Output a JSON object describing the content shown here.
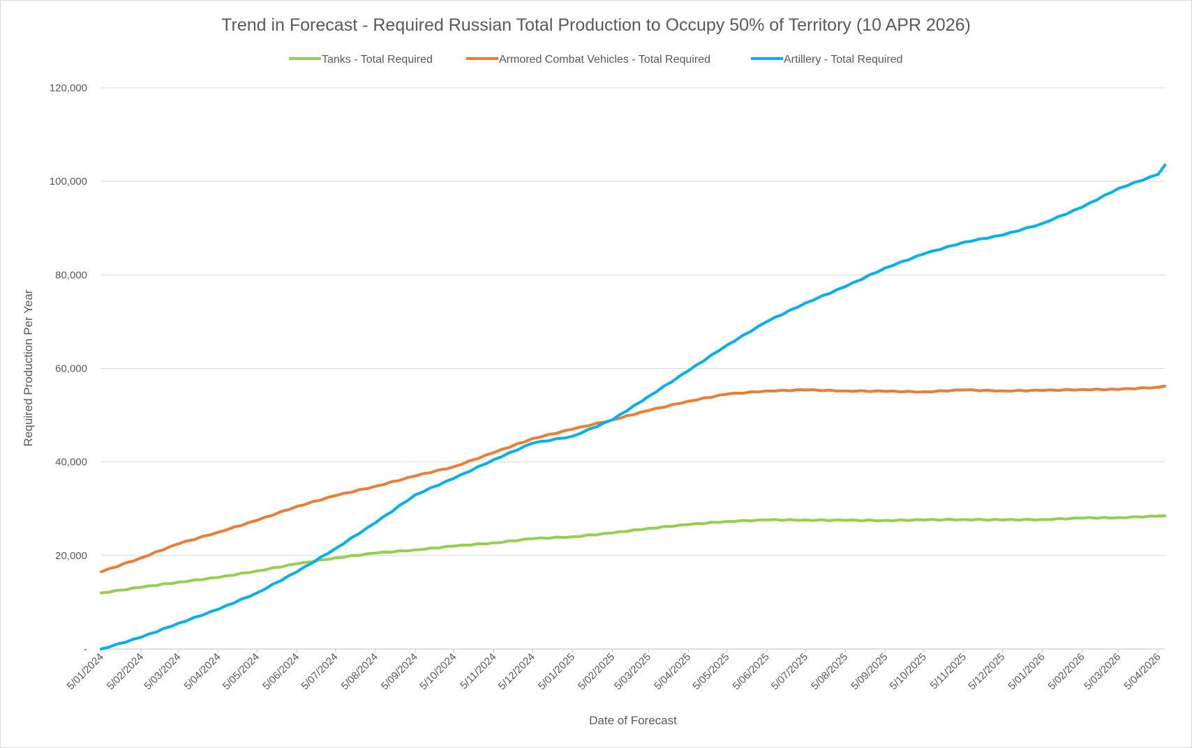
{
  "chart_data": {
    "type": "line",
    "title": "Trend in Forecast - Required Russian Total Production to Occupy 50% of Territory (10 APR 2026)",
    "xlabel": "Date of Forecast",
    "ylabel": "Required Production Per Year",
    "ylim": [
      0,
      120000
    ],
    "yticks": [
      0,
      20000,
      40000,
      60000,
      80000,
      100000,
      120000
    ],
    "ytick_labels": [
      "-",
      "20,000",
      "40,000",
      "60,000",
      "80,000",
      "100,000",
      "120,000"
    ],
    "x_start": "2024-01-05",
    "x_end": "2026-04-10",
    "xticks": [
      "2024-01-05",
      "2024-02-05",
      "2024-03-05",
      "2024-04-05",
      "2024-05-05",
      "2024-06-05",
      "2024-07-05",
      "2024-08-05",
      "2024-09-05",
      "2024-10-05",
      "2024-11-05",
      "2024-12-05",
      "2025-01-05",
      "2025-02-05",
      "2025-03-05",
      "2025-04-05",
      "2025-05-05",
      "2025-06-05",
      "2025-07-05",
      "2025-08-05",
      "2025-09-05",
      "2025-10-05",
      "2025-11-05",
      "2025-12-05",
      "2026-01-05",
      "2026-02-05",
      "2026-03-05",
      "2026-04-05"
    ],
    "xtick_labels": [
      "5/01/2024",
      "5/02/2024",
      "5/03/2024",
      "5/04/2024",
      "5/05/2024",
      "5/06/2024",
      "5/07/2024",
      "5/08/2024",
      "5/09/2024",
      "5/10/2024",
      "5/11/2024",
      "5/12/2024",
      "5/01/2025",
      "5/02/2025",
      "5/03/2025",
      "5/04/2025",
      "5/05/2025",
      "5/06/2025",
      "5/07/2025",
      "5/08/2025",
      "5/09/2025",
      "5/10/2025",
      "5/11/2025",
      "5/12/2025",
      "5/01/2026",
      "5/02/2026",
      "5/03/2026",
      "5/04/2026"
    ],
    "grid": true,
    "legend_position": "top",
    "series": [
      {
        "name": "Tanks - Total Required",
        "color": "#92d050",
        "points": [
          [
            "2024-01-05",
            12000
          ],
          [
            "2024-02-05",
            13200
          ],
          [
            "2024-03-05",
            14300
          ],
          [
            "2024-04-05",
            15300
          ],
          [
            "2024-05-05",
            16700
          ],
          [
            "2024-06-05",
            18200
          ],
          [
            "2024-07-05",
            19500
          ],
          [
            "2024-08-05",
            20500
          ],
          [
            "2024-09-05",
            21200
          ],
          [
            "2024-10-05",
            22000
          ],
          [
            "2024-11-05",
            22700
          ],
          [
            "2024-12-05",
            23600
          ],
          [
            "2025-01-05",
            24000
          ],
          [
            "2025-02-05",
            24800
          ],
          [
            "2025-03-05",
            25800
          ],
          [
            "2025-04-05",
            26600
          ],
          [
            "2025-05-05",
            27300
          ],
          [
            "2025-06-05",
            27600
          ],
          [
            "2025-07-05",
            27600
          ],
          [
            "2025-08-05",
            27500
          ],
          [
            "2025-09-05",
            27500
          ],
          [
            "2025-10-05",
            27600
          ],
          [
            "2025-11-05",
            27700
          ],
          [
            "2025-12-05",
            27600
          ],
          [
            "2026-01-05",
            27700
          ],
          [
            "2026-02-05",
            28000
          ],
          [
            "2026-03-05",
            28100
          ],
          [
            "2026-04-05",
            28400
          ],
          [
            "2026-04-10",
            28500
          ]
        ]
      },
      {
        "name": "Armored Combat Vehicles - Total Required",
        "color": "#ed7d31",
        "points": [
          [
            "2024-01-05",
            16500
          ],
          [
            "2024-02-05",
            19500
          ],
          [
            "2024-03-05",
            22500
          ],
          [
            "2024-04-05",
            25000
          ],
          [
            "2024-05-05",
            27500
          ],
          [
            "2024-06-05",
            30500
          ],
          [
            "2024-07-05",
            32800
          ],
          [
            "2024-08-05",
            34800
          ],
          [
            "2024-09-05",
            37000
          ],
          [
            "2024-10-05",
            39000
          ],
          [
            "2024-11-05",
            42000
          ],
          [
            "2024-12-05",
            45000
          ],
          [
            "2025-01-05",
            47000
          ],
          [
            "2025-02-05",
            49000
          ],
          [
            "2025-03-05",
            51000
          ],
          [
            "2025-04-05",
            53000
          ],
          [
            "2025-05-05",
            54500
          ],
          [
            "2025-06-05",
            55200
          ],
          [
            "2025-07-05",
            55400
          ],
          [
            "2025-08-05",
            55200
          ],
          [
            "2025-09-05",
            55100
          ],
          [
            "2025-10-05",
            55000
          ],
          [
            "2025-11-05",
            55400
          ],
          [
            "2025-12-05",
            55200
          ],
          [
            "2026-01-05",
            55300
          ],
          [
            "2026-02-05",
            55500
          ],
          [
            "2026-03-05",
            55500
          ],
          [
            "2026-04-05",
            56000
          ],
          [
            "2026-04-10",
            56200
          ]
        ]
      },
      {
        "name": "Artillery - Total Required",
        "color": "#00b0f0",
        "points": [
          [
            "2024-01-05",
            0
          ],
          [
            "2024-02-05",
            2500
          ],
          [
            "2024-03-05",
            5500
          ],
          [
            "2024-04-05",
            8500
          ],
          [
            "2024-05-05",
            12000
          ],
          [
            "2024-06-05",
            16500
          ],
          [
            "2024-07-05",
            21500
          ],
          [
            "2024-08-05",
            27000
          ],
          [
            "2024-09-05",
            33000
          ],
          [
            "2024-10-05",
            36500
          ],
          [
            "2024-11-05",
            40500
          ],
          [
            "2024-12-05",
            44000
          ],
          [
            "2025-01-05",
            45500
          ],
          [
            "2025-02-05",
            49000
          ],
          [
            "2025-03-05",
            54000
          ],
          [
            "2025-04-05",
            59500
          ],
          [
            "2025-05-05",
            65000
          ],
          [
            "2025-06-05",
            70000
          ],
          [
            "2025-07-05",
            74000
          ],
          [
            "2025-08-05",
            77500
          ],
          [
            "2025-09-05",
            81500
          ],
          [
            "2025-10-05",
            84500
          ],
          [
            "2025-11-05",
            87000
          ],
          [
            "2025-12-05",
            88500
          ],
          [
            "2026-01-05",
            91000
          ],
          [
            "2026-02-05",
            94500
          ],
          [
            "2026-03-05",
            98500
          ],
          [
            "2026-04-05",
            101500
          ],
          [
            "2026-04-10",
            103500
          ]
        ]
      }
    ]
  }
}
